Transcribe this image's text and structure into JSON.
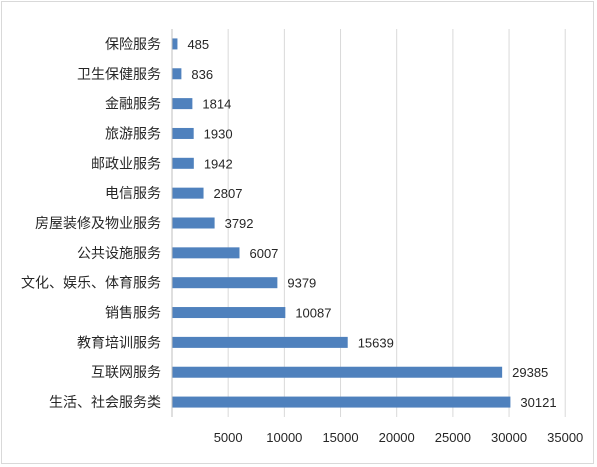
{
  "chart_data": {
    "type": "bar",
    "orientation": "horizontal",
    "title": "",
    "xlabel": "",
    "ylabel": "",
    "categories": [
      "保险服务",
      "卫生保健服务",
      "金融服务",
      "旅游服务",
      "邮政业服务",
      "电信服务",
      "房屋装修及物业服务",
      "公共设施服务",
      "文化、娱乐、体育服务",
      "销售服务",
      "教育培训服务",
      "互联网服务",
      "生活、社会服务类"
    ],
    "values": [
      485,
      836,
      1814,
      1930,
      1942,
      2807,
      3792,
      6007,
      9379,
      10087,
      15639,
      29385,
      30121
    ],
    "value_labels": [
      "485",
      "836",
      "1814",
      "1930",
      "1942",
      "2807",
      "3792",
      "6007",
      "9379",
      "10087",
      "15639",
      "29385",
      "30121"
    ],
    "xlim": [
      0,
      35000
    ],
    "x_ticks": [
      5000,
      10000,
      15000,
      20000,
      25000,
      30000,
      35000
    ],
    "x_tick_labels": [
      "5000",
      "10000",
      "15000",
      "20000",
      "25000",
      "30000",
      "35000"
    ],
    "grid": "vertical",
    "legend": "none",
    "colors": {
      "bar": "#4f81bd",
      "grid": "#d9d9d9",
      "axis": "#bfbfbf",
      "text": "#262626"
    }
  }
}
